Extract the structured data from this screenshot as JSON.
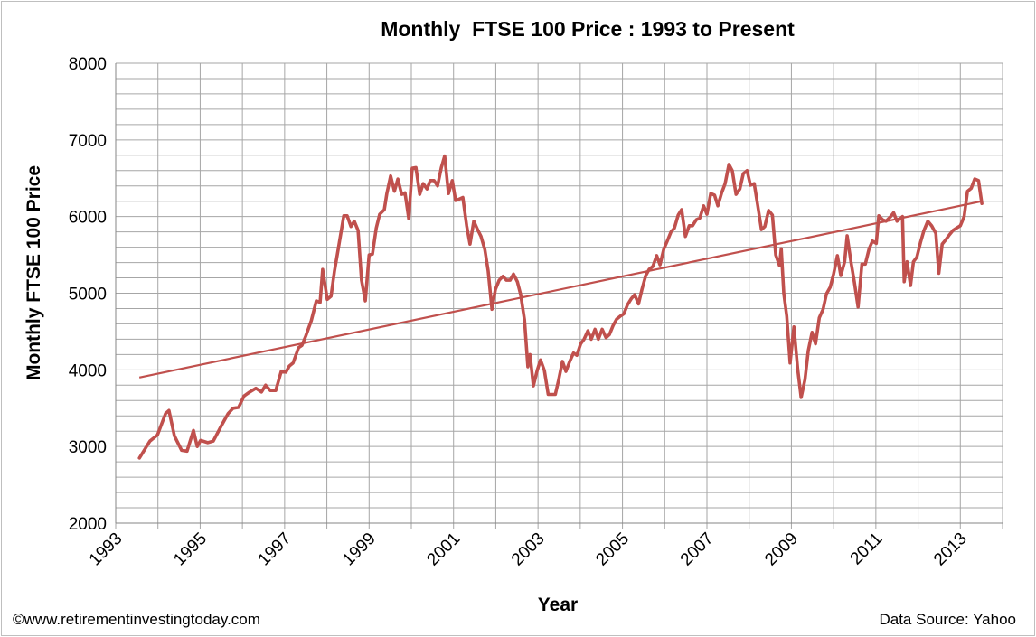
{
  "chart_data": {
    "type": "line",
    "title": "Monthly  FTSE 100 Price : 1993 to Present",
    "xlabel": "Year",
    "ylabel": "Monthly FTSE 100 Price",
    "xlim": [
      1993,
      2014
    ],
    "ylim": [
      2000,
      8000
    ],
    "x_ticks": [
      "1993",
      "1995",
      "1997",
      "1999",
      "2001",
      "2003",
      "2005",
      "2007",
      "2009",
      "2011",
      "2013"
    ],
    "y_ticks": [
      "2000",
      "3000",
      "4000",
      "5000",
      "6000",
      "7000",
      "8000"
    ],
    "grid": {
      "major_x_years": 1,
      "minor_y_step": 200
    },
    "legend": "none",
    "colors": {
      "series": "#c0504d",
      "grid": "#a6a6a6"
    },
    "series": [
      {
        "x": [
          1993.56,
          1993.81,
          1993.99,
          1994.18,
          1994.26,
          1994.39,
          1994.56,
          1994.69,
          1994.84,
          1994.93,
          1995.01,
          1995.18,
          1995.31,
          1995.51,
          1995.66,
          1995.78,
          1995.91,
          1996.04,
          1996.17,
          1996.32,
          1996.45,
          1996.55,
          1996.66,
          1996.79,
          1996.92,
          1997.03,
          1997.11,
          1997.2,
          1997.33,
          1997.41,
          1997.5,
          1997.63,
          1997.75,
          1997.84,
          1997.9,
          1998.01,
          1998.1,
          1998.18,
          1998.27,
          1998.4,
          1998.48,
          1998.57,
          1998.65,
          1998.74,
          1998.82,
          1998.91,
          1999.0,
          1999.08,
          1999.17,
          1999.25,
          1999.36,
          1999.42,
          1999.51,
          1999.6,
          1999.68,
          1999.77,
          1999.85,
          1999.94,
          2000.02,
          2000.11,
          2000.2,
          2000.28,
          2000.37,
          2000.45,
          2000.54,
          2000.62,
          2000.71,
          2000.79,
          2000.88,
          2000.97,
          2001.05,
          2001.14,
          2001.22,
          2001.31,
          2001.39,
          2001.48,
          2001.57,
          2001.65,
          2001.74,
          2001.82,
          2001.91,
          2001.99,
          2002.08,
          2002.17,
          2002.25,
          2002.34,
          2002.42,
          2002.51,
          2002.59,
          2002.68,
          2002.76,
          2002.81,
          2002.89,
          2002.98,
          2003.06,
          2003.15,
          2003.24,
          2003.32,
          2003.41,
          2003.49,
          2003.58,
          2003.66,
          2003.75,
          2003.84,
          2003.92,
          2004.01,
          2004.09,
          2004.18,
          2004.26,
          2004.35,
          2004.43,
          2004.52,
          2004.61,
          2004.69,
          2004.78,
          2004.86,
          2004.95,
          2005.03,
          2005.12,
          2005.21,
          2005.29,
          2005.38,
          2005.46,
          2005.55,
          2005.63,
          2005.72,
          2005.81,
          2005.89,
          2005.98,
          2006.06,
          2006.15,
          2006.23,
          2006.32,
          2006.4,
          2006.49,
          2006.58,
          2006.66,
          2006.75,
          2006.83,
          2006.92,
          2007.0,
          2007.09,
          2007.18,
          2007.26,
          2007.35,
          2007.43,
          2007.52,
          2007.6,
          2007.69,
          2007.78,
          2007.86,
          2007.95,
          2008.03,
          2008.12,
          2008.2,
          2008.29,
          2008.37,
          2008.46,
          2008.55,
          2008.63,
          2008.72,
          2008.76,
          2008.82,
          2008.89,
          2008.97,
          2009.06,
          2009.15,
          2009.23,
          2009.32,
          2009.4,
          2009.49,
          2009.57,
          2009.66,
          2009.75,
          2009.83,
          2009.92,
          2010.0,
          2010.09,
          2010.17,
          2010.26,
          2010.32,
          2010.41,
          2010.49,
          2010.58,
          2010.67,
          2010.75,
          2010.84,
          2010.92,
          2011.01,
          2011.07,
          2011.16,
          2011.24,
          2011.35,
          2011.42,
          2011.5,
          2011.57,
          2011.63,
          2011.67,
          2011.74,
          2011.82,
          2011.89,
          2011.97,
          2012.06,
          2012.14,
          2012.23,
          2012.32,
          2012.42,
          2012.49,
          2012.57,
          2012.66,
          2012.74,
          2012.83,
          2012.91,
          2013.0,
          2013.09,
          2013.17,
          2013.26,
          2013.34,
          2013.43,
          2013.51
        ],
        "values": [
          2850,
          3070,
          3150,
          3430,
          3470,
          3140,
          2950,
          2940,
          3210,
          3000,
          3080,
          3050,
          3070,
          3280,
          3430,
          3500,
          3510,
          3660,
          3710,
          3760,
          3710,
          3800,
          3730,
          3730,
          3980,
          3970,
          4050,
          4090,
          4290,
          4320,
          4440,
          4640,
          4900,
          4880,
          5310,
          4920,
          4960,
          5290,
          5580,
          6010,
          6010,
          5870,
          5940,
          5820,
          5170,
          4900,
          5500,
          5510,
          5850,
          6030,
          6090,
          6300,
          6530,
          6330,
          6490,
          6290,
          6310,
          5970,
          6630,
          6640,
          6290,
          6430,
          6360,
          6470,
          6470,
          6400,
          6640,
          6790,
          6300,
          6470,
          6210,
          6230,
          6250,
          5880,
          5640,
          5940,
          5830,
          5740,
          5570,
          5290,
          4790,
          5050,
          5170,
          5220,
          5170,
          5170,
          5250,
          5150,
          4980,
          4650,
          4040,
          4200,
          3790,
          3990,
          4130,
          3990,
          3680,
          3680,
          3680,
          3870,
          4110,
          3980,
          4110,
          4220,
          4190,
          4340,
          4400,
          4510,
          4400,
          4530,
          4400,
          4530,
          4420,
          4460,
          4580,
          4660,
          4700,
          4730,
          4850,
          4930,
          4980,
          4860,
          5050,
          5230,
          5310,
          5350,
          5490,
          5370,
          5580,
          5680,
          5800,
          5850,
          6020,
          6090,
          5740,
          5880,
          5880,
          5960,
          5980,
          6140,
          6030,
          6300,
          6280,
          6140,
          6310,
          6430,
          6680,
          6600,
          6290,
          6360,
          6560,
          6600,
          6410,
          6430,
          6150,
          5830,
          5870,
          6080,
          6020,
          5500,
          5360,
          5580,
          5000,
          4700,
          4090,
          4560,
          4010,
          3640,
          3870,
          4250,
          4490,
          4340,
          4680,
          4790,
          4990,
          5080,
          5250,
          5490,
          5230,
          5410,
          5750,
          5410,
          5150,
          4820,
          5380,
          5380,
          5580,
          5680,
          5650,
          6010,
          5960,
          5940,
          6000,
          6050,
          5940,
          5970,
          6000,
          5150,
          5410,
          5100,
          5410,
          5470,
          5670,
          5820,
          5940,
          5880,
          5780,
          5260,
          5640,
          5700,
          5760,
          5820,
          5850,
          5880,
          6000,
          6330,
          6370,
          6490,
          6470,
          6170
        ]
      }
    ],
    "trendline": {
      "type": "linear",
      "x": [
        1993.56,
        2013.51
      ],
      "values": [
        3900,
        6200
      ]
    }
  },
  "footer": {
    "credit": "©www.retirementinvestingtoday.com",
    "source": "Data Source: Yahoo"
  }
}
